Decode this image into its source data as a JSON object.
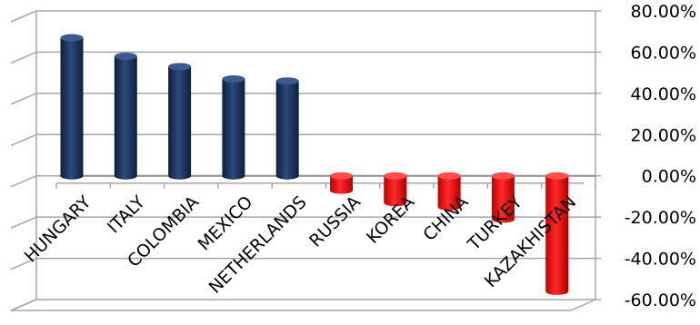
{
  "chart_data": {
    "type": "bar",
    "style": "3d-cylinder",
    "categories": [
      "HUNGARY",
      "ITALY",
      "COLOMBIA",
      "MEXICO",
      "NETHERLANDS",
      "RUSSIA",
      "KOREA",
      "CHINA",
      "TURKEY",
      "KAZAKHISTAN"
    ],
    "values": [
      67,
      58,
      53,
      47,
      46,
      -7,
      -13,
      -15,
      -21,
      -56
    ],
    "y_ticks": [
      "80.00%",
      "60.00%",
      "40.00%",
      "20.00%",
      "0.00%",
      "-20.00%",
      "-40.00%",
      "-60.00%"
    ],
    "ylim": [
      -60,
      80
    ],
    "y_axis_position": "right",
    "grid": true,
    "colors": {
      "positive": "#1f3864",
      "negative": "#e60000",
      "grid": "#a6a6a6"
    }
  }
}
